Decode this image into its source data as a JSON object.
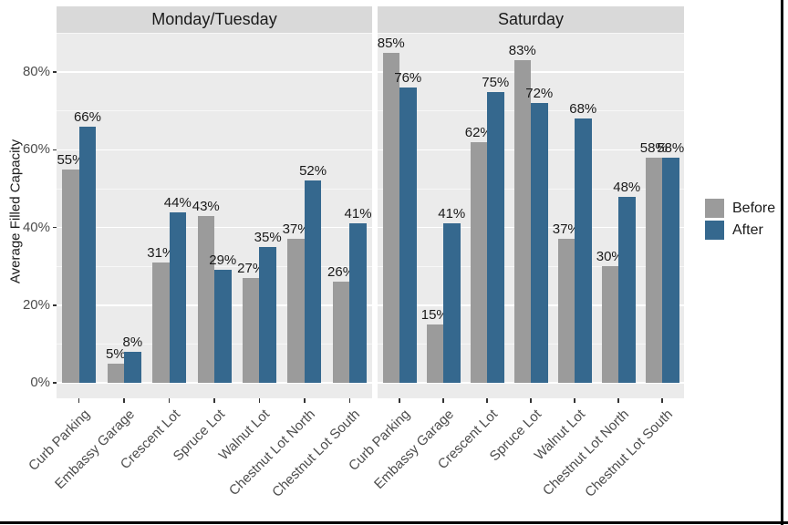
{
  "page": {
    "background": "#FFFFFF"
  },
  "colors": {
    "panel_bg": "#EBEBEB",
    "strip_bg": "#D9D9D9",
    "grid_major": "#FFFFFF",
    "grid_minor": "rgba(255,255,255,0.6)",
    "tick": "#333333",
    "tick_label": "#4D4D4D",
    "text": "#1A1A1A",
    "frame": "#000000"
  },
  "chart_data": {
    "type": "bar",
    "title": "",
    "xlabel": "",
    "ylabel": "Average Filled Capacity",
    "categories": [
      "Curb Parking",
      "Embassy Garage",
      "Crescent Lot",
      "Spruce Lot",
      "Walnut Lot",
      "Chestnut Lot North",
      "Chestnut Lot South"
    ],
    "facets": [
      {
        "label": "Monday/Tuesday",
        "series": [
          {
            "name": "Before",
            "values": [
              55,
              5,
              31,
              43,
              27,
              37,
              26
            ]
          },
          {
            "name": "After",
            "values": [
              66,
              8,
              44,
              29,
              35,
              52,
              41
            ]
          }
        ]
      },
      {
        "label": "Saturday",
        "series": [
          {
            "name": "Before",
            "values": [
              85,
              15,
              62,
              83,
              37,
              30,
              58
            ]
          },
          {
            "name": "After",
            "values": [
              76,
              41,
              75,
              72,
              68,
              48,
              58
            ]
          }
        ]
      }
    ],
    "yticks": [
      0,
      20,
      40,
      60,
      80
    ],
    "ytick_labels": [
      "0%",
      "20%",
      "40%",
      "60%",
      "80%"
    ],
    "minor_ticks": [
      10,
      30,
      50,
      70,
      90
    ],
    "ylim": [
      0,
      90
    ],
    "grid": true,
    "value_suffix": "%",
    "legend": {
      "position": "right",
      "items": [
        {
          "label": "Before",
          "color": "#9B9B9B"
        },
        {
          "label": "After",
          "color": "#35688E"
        }
      ]
    }
  }
}
